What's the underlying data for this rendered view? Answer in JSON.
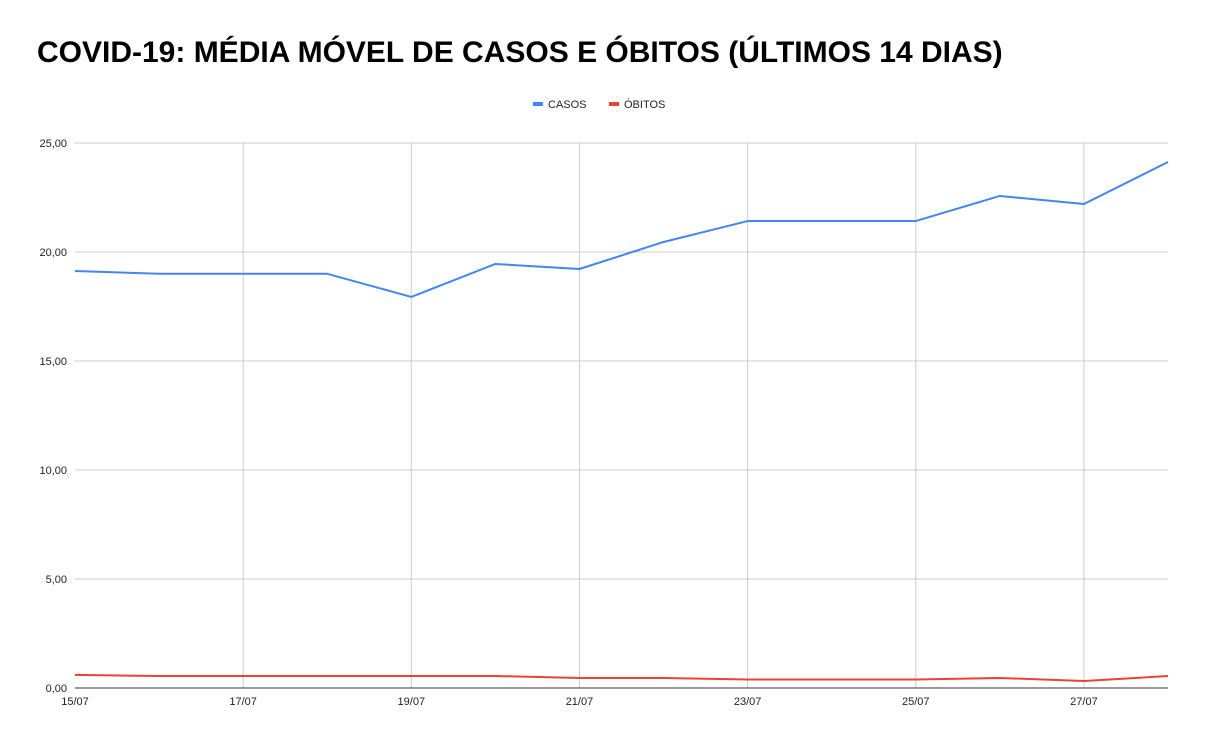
{
  "chart_data": {
    "type": "line",
    "title": "COVID-19: MÉDIA MÓVEL DE CASOS E ÓBITOS (ÚLTIMOS 14 DIAS)",
    "x": [
      "15/07",
      "16/07",
      "17/07",
      "18/07",
      "19/07",
      "20/07",
      "21/07",
      "22/07",
      "23/07",
      "24/07",
      "25/07",
      "26/07",
      "27/07",
      "28/07"
    ],
    "x_tick_labels": [
      "15/07",
      "17/07",
      "19/07",
      "21/07",
      "23/07",
      "25/07",
      "27/07"
    ],
    "y_tick_labels": [
      "0,00",
      "5,00",
      "10,00",
      "15,00",
      "20,00",
      "25,00"
    ],
    "ylim": [
      0,
      25
    ],
    "grid": true,
    "legend_position": "top",
    "series": [
      {
        "name": "CASOS",
        "color": "#4285f4",
        "values": [
          19.13,
          19.0,
          19.0,
          19.0,
          17.94,
          19.45,
          19.22,
          20.46,
          21.42,
          21.42,
          21.42,
          22.57,
          22.2,
          24.13
        ]
      },
      {
        "name": "ÓBITOS",
        "color": "#ea4335",
        "values": [
          0.6,
          0.55,
          0.55,
          0.55,
          0.55,
          0.55,
          0.46,
          0.46,
          0.39,
          0.39,
          0.39,
          0.46,
          0.32,
          0.55
        ]
      }
    ]
  }
}
